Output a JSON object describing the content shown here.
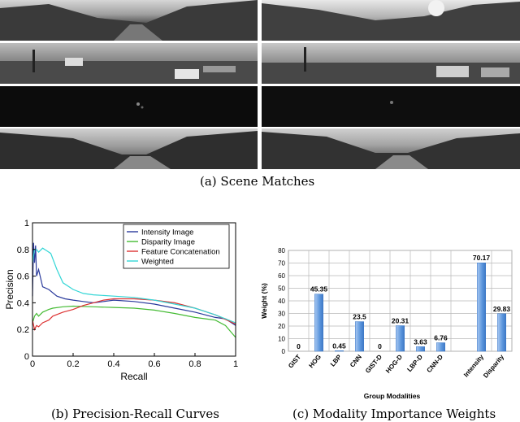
{
  "figure": {
    "captions": {
      "a": "(a) Scene Matches",
      "b": "(b) Precision-Recall Curves",
      "c": "(c) Modality Importance Weights"
    },
    "scene_rows": [
      {
        "left": "day-road-mountains",
        "right": "day-road-mountains-bright"
      },
      {
        "left": "parking-cars-day",
        "right": "intersection-cars-day"
      },
      {
        "left": "dark-night-road",
        "right": "dark-night-road"
      },
      {
        "left": "mountain-road-valley",
        "right": "mountain-road-forest"
      }
    ]
  },
  "chart_data": [
    {
      "type": "line",
      "xlabel": "Recall",
      "ylabel": "Precision",
      "xlim": [
        0,
        1
      ],
      "ylim": [
        0,
        1
      ],
      "xticks": [
        "0",
        "0.2",
        "0.4",
        "0.6",
        "0.8",
        "1"
      ],
      "yticks": [
        "0",
        "0.2",
        "0.4",
        "0.6",
        "0.8",
        "1"
      ],
      "legend_position": "top-right",
      "series": [
        {
          "name": "Intensity Image",
          "color": "#2a3a9c",
          "x": [
            0,
            0.005,
            0.01,
            0.015,
            0.02,
            0.03,
            0.05,
            0.08,
            0.12,
            0.16,
            0.2,
            0.25,
            0.3,
            0.35,
            0.4,
            0.5,
            0.6,
            0.7,
            0.8,
            0.85,
            0.9,
            0.95,
            1.0
          ],
          "y": [
            0.45,
            0.85,
            0.7,
            0.83,
            0.6,
            0.65,
            0.52,
            0.5,
            0.45,
            0.43,
            0.42,
            0.41,
            0.4,
            0.41,
            0.42,
            0.41,
            0.39,
            0.36,
            0.33,
            0.31,
            0.29,
            0.28,
            0.23
          ]
        },
        {
          "name": "Disparity Image",
          "color": "#44bb33",
          "x": [
            0,
            0.01,
            0.02,
            0.03,
            0.05,
            0.08,
            0.1,
            0.15,
            0.2,
            0.3,
            0.4,
            0.5,
            0.6,
            0.7,
            0.8,
            0.9,
            0.95,
            1.0
          ],
          "y": [
            0.25,
            0.3,
            0.32,
            0.3,
            0.33,
            0.35,
            0.36,
            0.37,
            0.375,
            0.37,
            0.365,
            0.36,
            0.345,
            0.32,
            0.29,
            0.27,
            0.23,
            0.14
          ]
        },
        {
          "name": "Feature Concatenation",
          "color": "#dd3333",
          "x": [
            0,
            0.01,
            0.02,
            0.03,
            0.05,
            0.08,
            0.1,
            0.15,
            0.2,
            0.25,
            0.3,
            0.35,
            0.4,
            0.5,
            0.6,
            0.7,
            0.8,
            0.9,
            1.0
          ],
          "y": [
            0.27,
            0.2,
            0.23,
            0.22,
            0.25,
            0.27,
            0.3,
            0.33,
            0.35,
            0.38,
            0.4,
            0.42,
            0.43,
            0.43,
            0.42,
            0.4,
            0.36,
            0.31,
            0.24
          ]
        },
        {
          "name": "Weighted",
          "color": "#33d6d6",
          "x": [
            0,
            0.005,
            0.01,
            0.02,
            0.03,
            0.05,
            0.07,
            0.09,
            0.12,
            0.15,
            0.2,
            0.25,
            0.3,
            0.4,
            0.5,
            0.6,
            0.7,
            0.8,
            0.9,
            1.0
          ],
          "y": [
            0.7,
            0.75,
            0.8,
            0.8,
            0.78,
            0.81,
            0.79,
            0.77,
            0.65,
            0.55,
            0.5,
            0.47,
            0.46,
            0.45,
            0.44,
            0.42,
            0.39,
            0.36,
            0.31,
            0.25
          ]
        }
      ]
    },
    {
      "type": "bar",
      "xlabel": "Group Modalities",
      "ylabel": "Weight (%)",
      "ylim": [
        0,
        80
      ],
      "yticks": [
        "0",
        "10",
        "20",
        "30",
        "40",
        "50",
        "60",
        "70",
        "80"
      ],
      "grid": true,
      "categories": [
        "GIST",
        "HOG",
        "LBP",
        "CNN",
        "GIST-D",
        "HOG-D",
        "LBP-D",
        "CNN-D",
        "Intensity",
        "Disparity"
      ],
      "values": [
        0,
        45.35,
        0.45,
        23.5,
        0,
        20.31,
        3.63,
        6.76,
        70.17,
        29.83
      ],
      "value_labels": [
        "0",
        "45.35",
        "0.45",
        "23.5",
        "0",
        "20.31",
        "3.63",
        "6.76",
        "70.17",
        "29.83"
      ]
    }
  ]
}
